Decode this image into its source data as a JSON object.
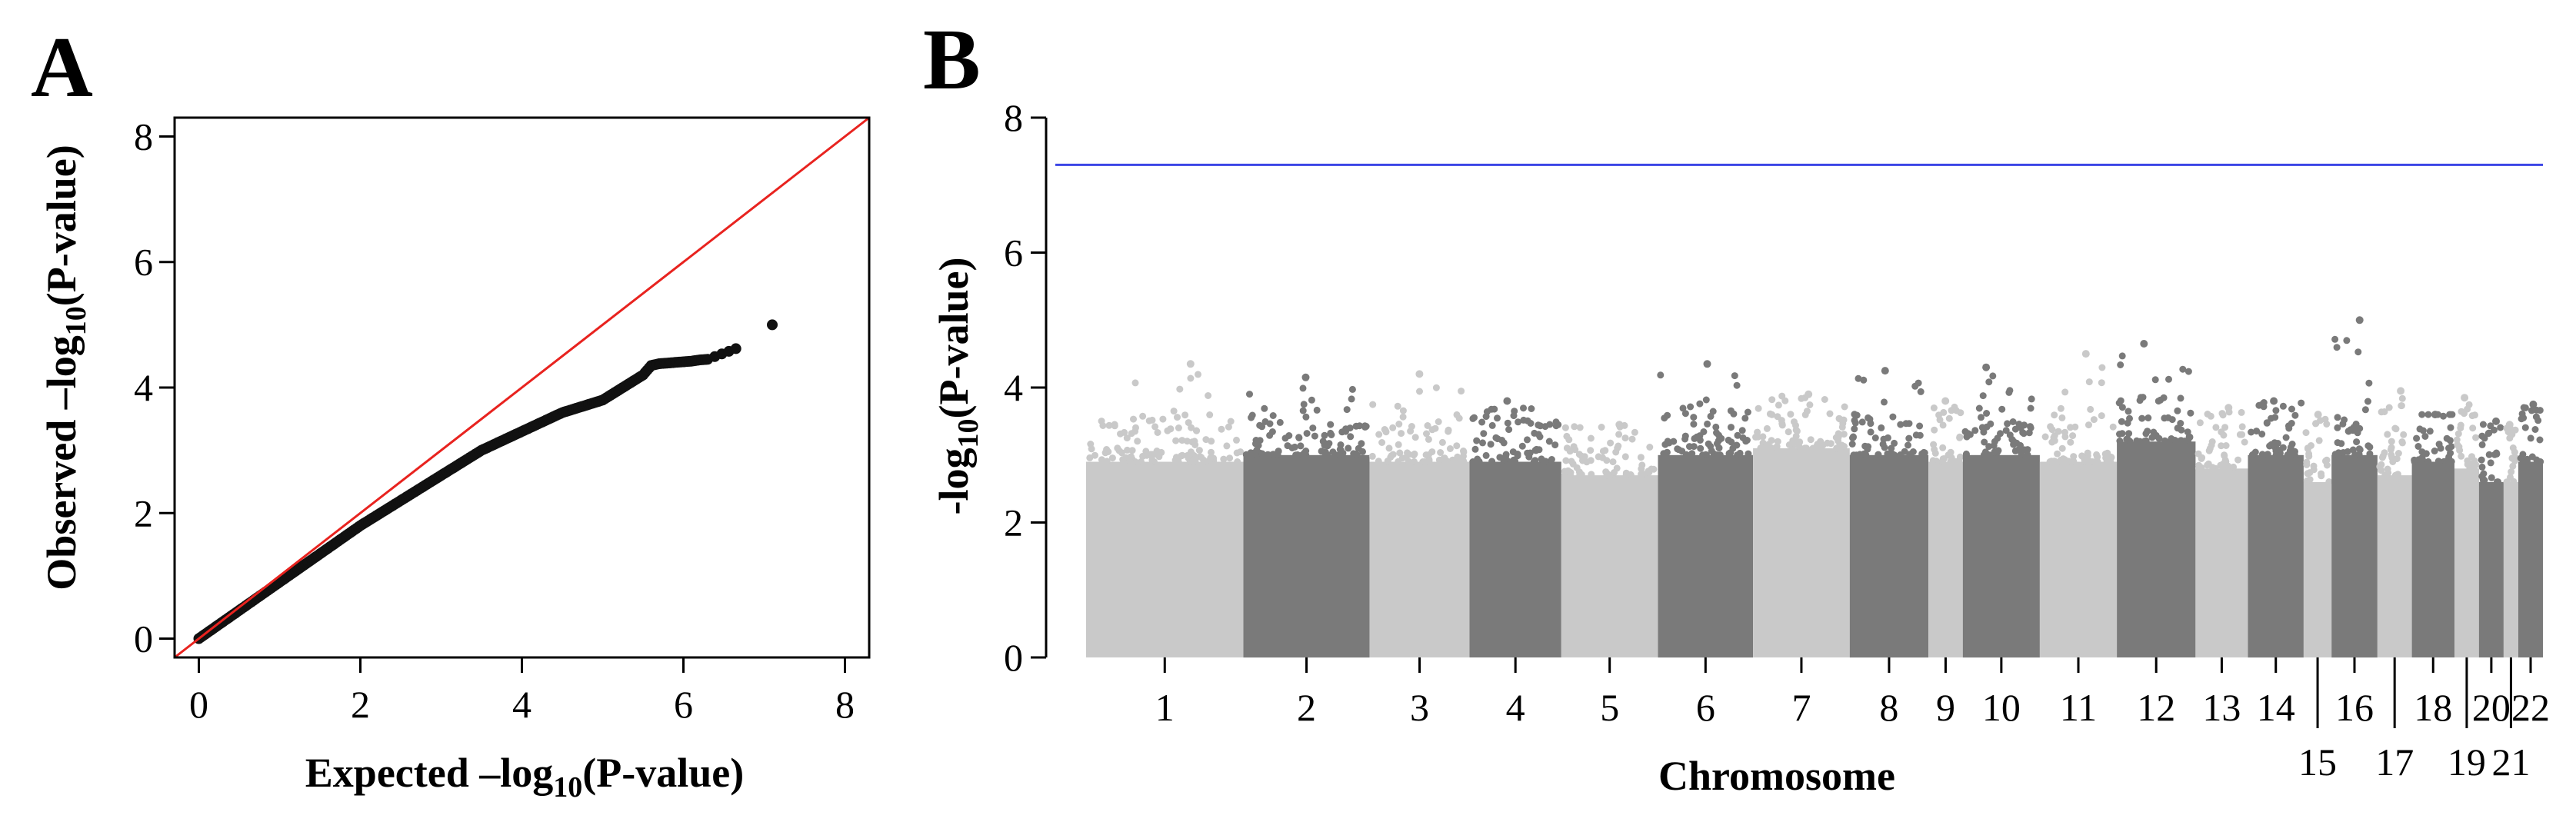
{
  "panels": {
    "a_label": "A",
    "b_label": "B"
  },
  "colors": {
    "qq_points": "#111111",
    "qq_reference_line": "#e8231f",
    "significance_line": "#3c46e6",
    "chrom_light": "#c9c9c9",
    "chrom_dark": "#7a7a7a"
  },
  "chart_data": [
    {
      "type": "scatter",
      "panel": "A",
      "xlabel": "Expected –log10(P-value)",
      "ylabel": "Observed –log10(P-value)",
      "xlabel_parts": {
        "pre": "Expected –log",
        "sub": "10",
        "post": "(P-value)"
      },
      "ylabel_parts": {
        "pre": "Observed –log",
        "sub": "10",
        "post": "(P-value)"
      },
      "xlim": [
        0,
        8
      ],
      "ylim": [
        0,
        8
      ],
      "x_ticks": [
        0,
        2,
        4,
        6,
        8
      ],
      "y_ticks": [
        0,
        2,
        4,
        6,
        8
      ],
      "x_tick_labels": [
        "0",
        "2",
        "4",
        "6",
        "8"
      ],
      "y_tick_labels": [
        "0",
        "2",
        "4",
        "6",
        "8"
      ],
      "reference_line": {
        "x": [
          -0.3,
          8.3
        ],
        "y": [
          -0.3,
          8.3
        ]
      },
      "points": [
        [
          0.0,
          0.0
        ],
        [
          0.1,
          0.09
        ],
        [
          0.2,
          0.18
        ],
        [
          0.3,
          0.27
        ],
        [
          0.4,
          0.36
        ],
        [
          0.5,
          0.45
        ],
        [
          0.6,
          0.54
        ],
        [
          0.7,
          0.63
        ],
        [
          0.8,
          0.72
        ],
        [
          0.9,
          0.81
        ],
        [
          1.0,
          0.9
        ],
        [
          1.1,
          0.99
        ],
        [
          1.2,
          1.08
        ],
        [
          1.3,
          1.17
        ],
        [
          1.4,
          1.26
        ],
        [
          1.5,
          1.35
        ],
        [
          1.6,
          1.44
        ],
        [
          1.7,
          1.53
        ],
        [
          1.8,
          1.62
        ],
        [
          1.9,
          1.71
        ],
        [
          2.0,
          1.8
        ],
        [
          2.1,
          1.88
        ],
        [
          2.2,
          1.96
        ],
        [
          2.3,
          2.04
        ],
        [
          2.4,
          2.12
        ],
        [
          2.5,
          2.2
        ],
        [
          2.6,
          2.28
        ],
        [
          2.7,
          2.36
        ],
        [
          2.8,
          2.44
        ],
        [
          2.9,
          2.52
        ],
        [
          3.0,
          2.6
        ],
        [
          3.1,
          2.68
        ],
        [
          3.2,
          2.76
        ],
        [
          3.3,
          2.84
        ],
        [
          3.4,
          2.92
        ],
        [
          3.5,
          3.0
        ],
        [
          3.6,
          3.06
        ],
        [
          3.7,
          3.12
        ],
        [
          3.8,
          3.18
        ],
        [
          3.9,
          3.24
        ],
        [
          4.0,
          3.3
        ],
        [
          4.1,
          3.36
        ],
        [
          4.2,
          3.42
        ],
        [
          4.3,
          3.48
        ],
        [
          4.4,
          3.54
        ],
        [
          4.5,
          3.6
        ],
        [
          4.6,
          3.64
        ],
        [
          4.7,
          3.68
        ],
        [
          4.8,
          3.72
        ],
        [
          4.9,
          3.76
        ],
        [
          5.0,
          3.8
        ],
        [
          5.1,
          3.88
        ],
        [
          5.2,
          3.96
        ],
        [
          5.3,
          4.04
        ],
        [
          5.4,
          4.12
        ],
        [
          5.5,
          4.2
        ],
        [
          5.6,
          4.35
        ],
        [
          5.7,
          4.38
        ],
        [
          5.8,
          4.39
        ],
        [
          5.9,
          4.4
        ],
        [
          6.0,
          4.41
        ],
        [
          6.1,
          4.42
        ],
        [
          6.2,
          4.44
        ],
        [
          6.3,
          4.45
        ],
        [
          6.65,
          4.62
        ],
        [
          7.1,
          5.0
        ]
      ]
    },
    {
      "type": "scatter",
      "panel": "B",
      "subtype": "manhattan",
      "xlabel": "Chromosome",
      "ylabel": "-log10(P-value)",
      "ylabel_parts": {
        "pre": "-log",
        "sub": "10",
        "post": "(P-value)"
      },
      "ylim": [
        0,
        8
      ],
      "y_ticks": [
        0,
        2,
        4,
        6,
        8
      ],
      "y_tick_labels": [
        "0",
        "2",
        "4",
        "6",
        "8"
      ],
      "significance_threshold": 7.3,
      "chromosomes": [
        "1",
        "2",
        "3",
        "4",
        "5",
        "6",
        "7",
        "8",
        "9",
        "10",
        "11",
        "12",
        "13",
        "14",
        "15",
        "16",
        "17",
        "18",
        "19",
        "20",
        "21",
        "22"
      ],
      "relative_lengths": [
        9.6,
        7.7,
        6.1,
        5.6,
        5.9,
        5.8,
        5.9,
        4.8,
        2.1,
        4.7,
        4.7,
        4.8,
        3.2,
        3.4,
        1.7,
        2.8,
        2.1,
        2.6,
        1.5,
        1.5,
        0.9,
        1.5
      ],
      "typical_max": [
        3.6,
        3.7,
        3.6,
        3.6,
        3.4,
        3.7,
        3.8,
        3.7,
        3.6,
        3.7,
        3.6,
        3.9,
        3.5,
        3.7,
        3.3,
        3.7,
        3.4,
        3.6,
        3.5,
        3.3,
        3.3,
        3.6
      ],
      "top_values": [
        4.35,
        4.15,
        4.2,
        3.8,
        3.45,
        4.35,
        3.9,
        4.25,
        3.8,
        4.3,
        4.5,
        4.65,
        3.7,
        3.8,
        3.6,
        5.0,
        3.95,
        3.6,
        3.85,
        3.5,
        3.45,
        3.75
      ],
      "label_positions": [
        "top",
        "top",
        "top",
        "top",
        "top",
        "top",
        "top",
        "top",
        "top",
        "top",
        "top",
        "top",
        "top",
        "top",
        "bottom",
        "top",
        "bottom",
        "top",
        "bottom",
        "top",
        "bottom",
        "top"
      ]
    }
  ]
}
